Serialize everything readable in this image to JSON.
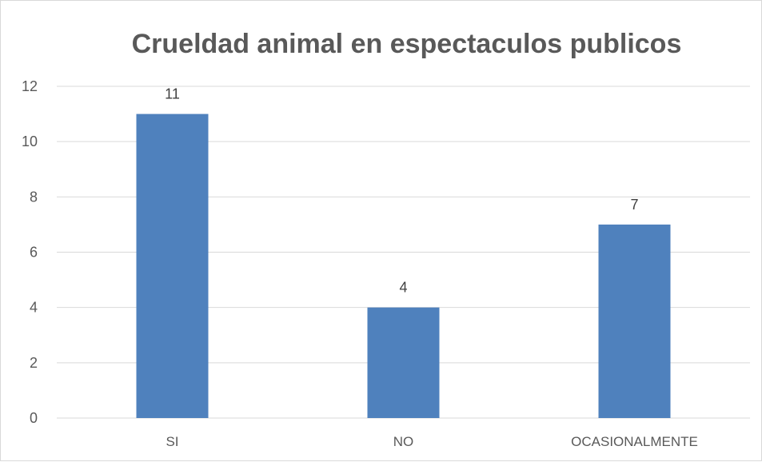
{
  "chart_data": {
    "type": "bar",
    "title": "Crueldad animal en espectaculos publicos",
    "categories": [
      "SI",
      "NO",
      "OCASIONALMENTE"
    ],
    "values": [
      11,
      4,
      7
    ],
    "data_labels": [
      "11",
      "4",
      "7"
    ],
    "ylim": [
      0,
      12
    ],
    "yticks": [
      0,
      2,
      4,
      6,
      8,
      10,
      12
    ],
    "grid": true,
    "legend": "none",
    "colors": {
      "bar": "#4f81bd"
    }
  }
}
